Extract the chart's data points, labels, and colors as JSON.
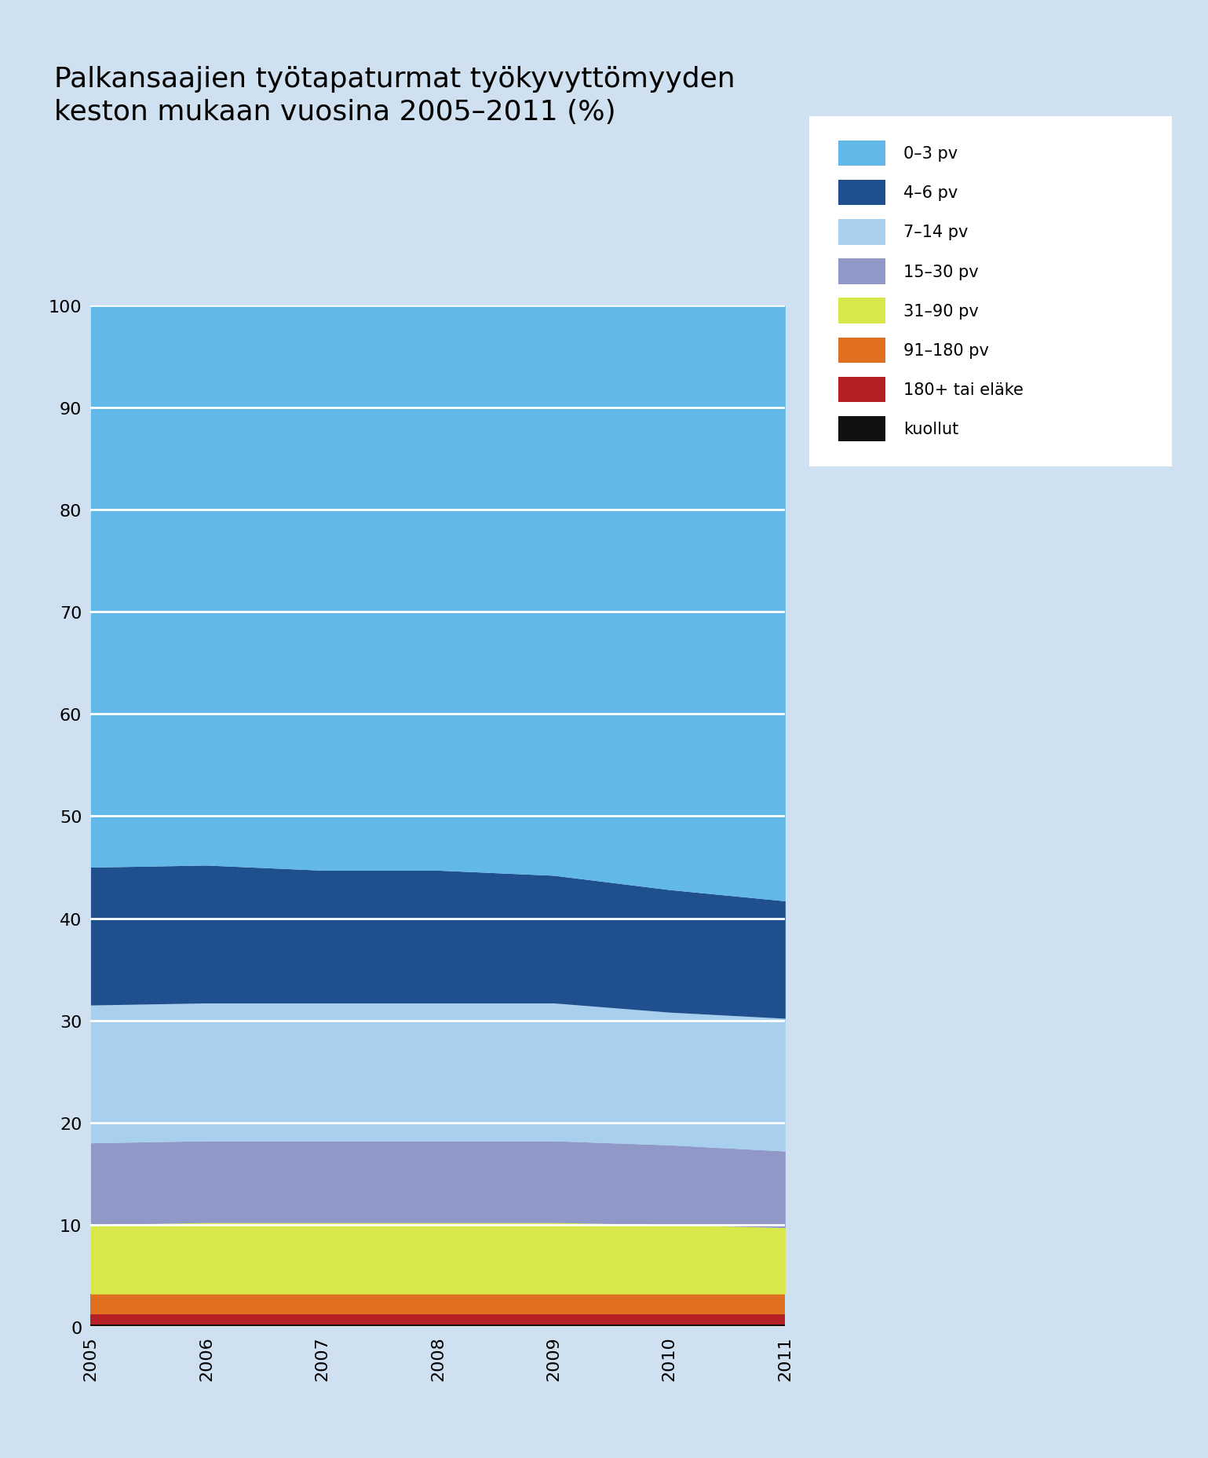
{
  "years": [
    2005,
    2006,
    2007,
    2008,
    2009,
    2010,
    2011
  ],
  "title": "Palkansaajien työtapaturmat työkyvyttömyyden\nkeston mukaan vuosina 2005–2011 (%)",
  "keys_bottom_to_top": [
    "kuollut",
    "180+ tai eläke",
    "91–180 pv",
    "31–90 pv",
    "15–30 pv",
    "7–14 pv",
    "4–6 pv",
    "0–3 pv"
  ],
  "legend_labels": [
    "0–3 pv",
    "4–6 pv",
    "7–14 pv",
    "15–30 pv",
    "31–90 pv",
    "91–180 pv",
    "180+ tai eläke",
    "kuollut"
  ],
  "colors_bottom_to_top": [
    "#111111",
    "#b52025",
    "#e07020",
    "#d8e84a",
    "#9098c8",
    "#a8d0ee",
    "#204f90",
    "#62b8e8"
  ],
  "data": [
    [
      0.2,
      0.2,
      0.2,
      0.2,
      0.2,
      0.2,
      0.2
    ],
    [
      1.0,
      1.0,
      1.0,
      1.0,
      1.0,
      1.0,
      1.0
    ],
    [
      2.0,
      2.0,
      2.0,
      2.0,
      2.0,
      2.0,
      2.0
    ],
    [
      6.8,
      7.0,
      7.0,
      7.0,
      7.0,
      6.8,
      6.5
    ],
    [
      8.0,
      8.0,
      8.0,
      8.0,
      8.0,
      7.8,
      7.5
    ],
    [
      13.5,
      13.5,
      13.5,
      13.5,
      13.5,
      13.0,
      13.0
    ],
    [
      13.5,
      13.5,
      13.0,
      13.0,
      12.5,
      12.0,
      11.5
    ],
    [
      55.0,
      54.8,
      55.3,
      55.3,
      55.8,
      57.2,
      58.3
    ]
  ],
  "ylim": [
    0,
    100
  ],
  "yticks": [
    0,
    10,
    20,
    30,
    40,
    50,
    60,
    70,
    80,
    90,
    100
  ],
  "background_color": "#cfe0f0",
  "title_fontsize": 26,
  "tick_fontsize": 16,
  "legend_fontsize": 15
}
